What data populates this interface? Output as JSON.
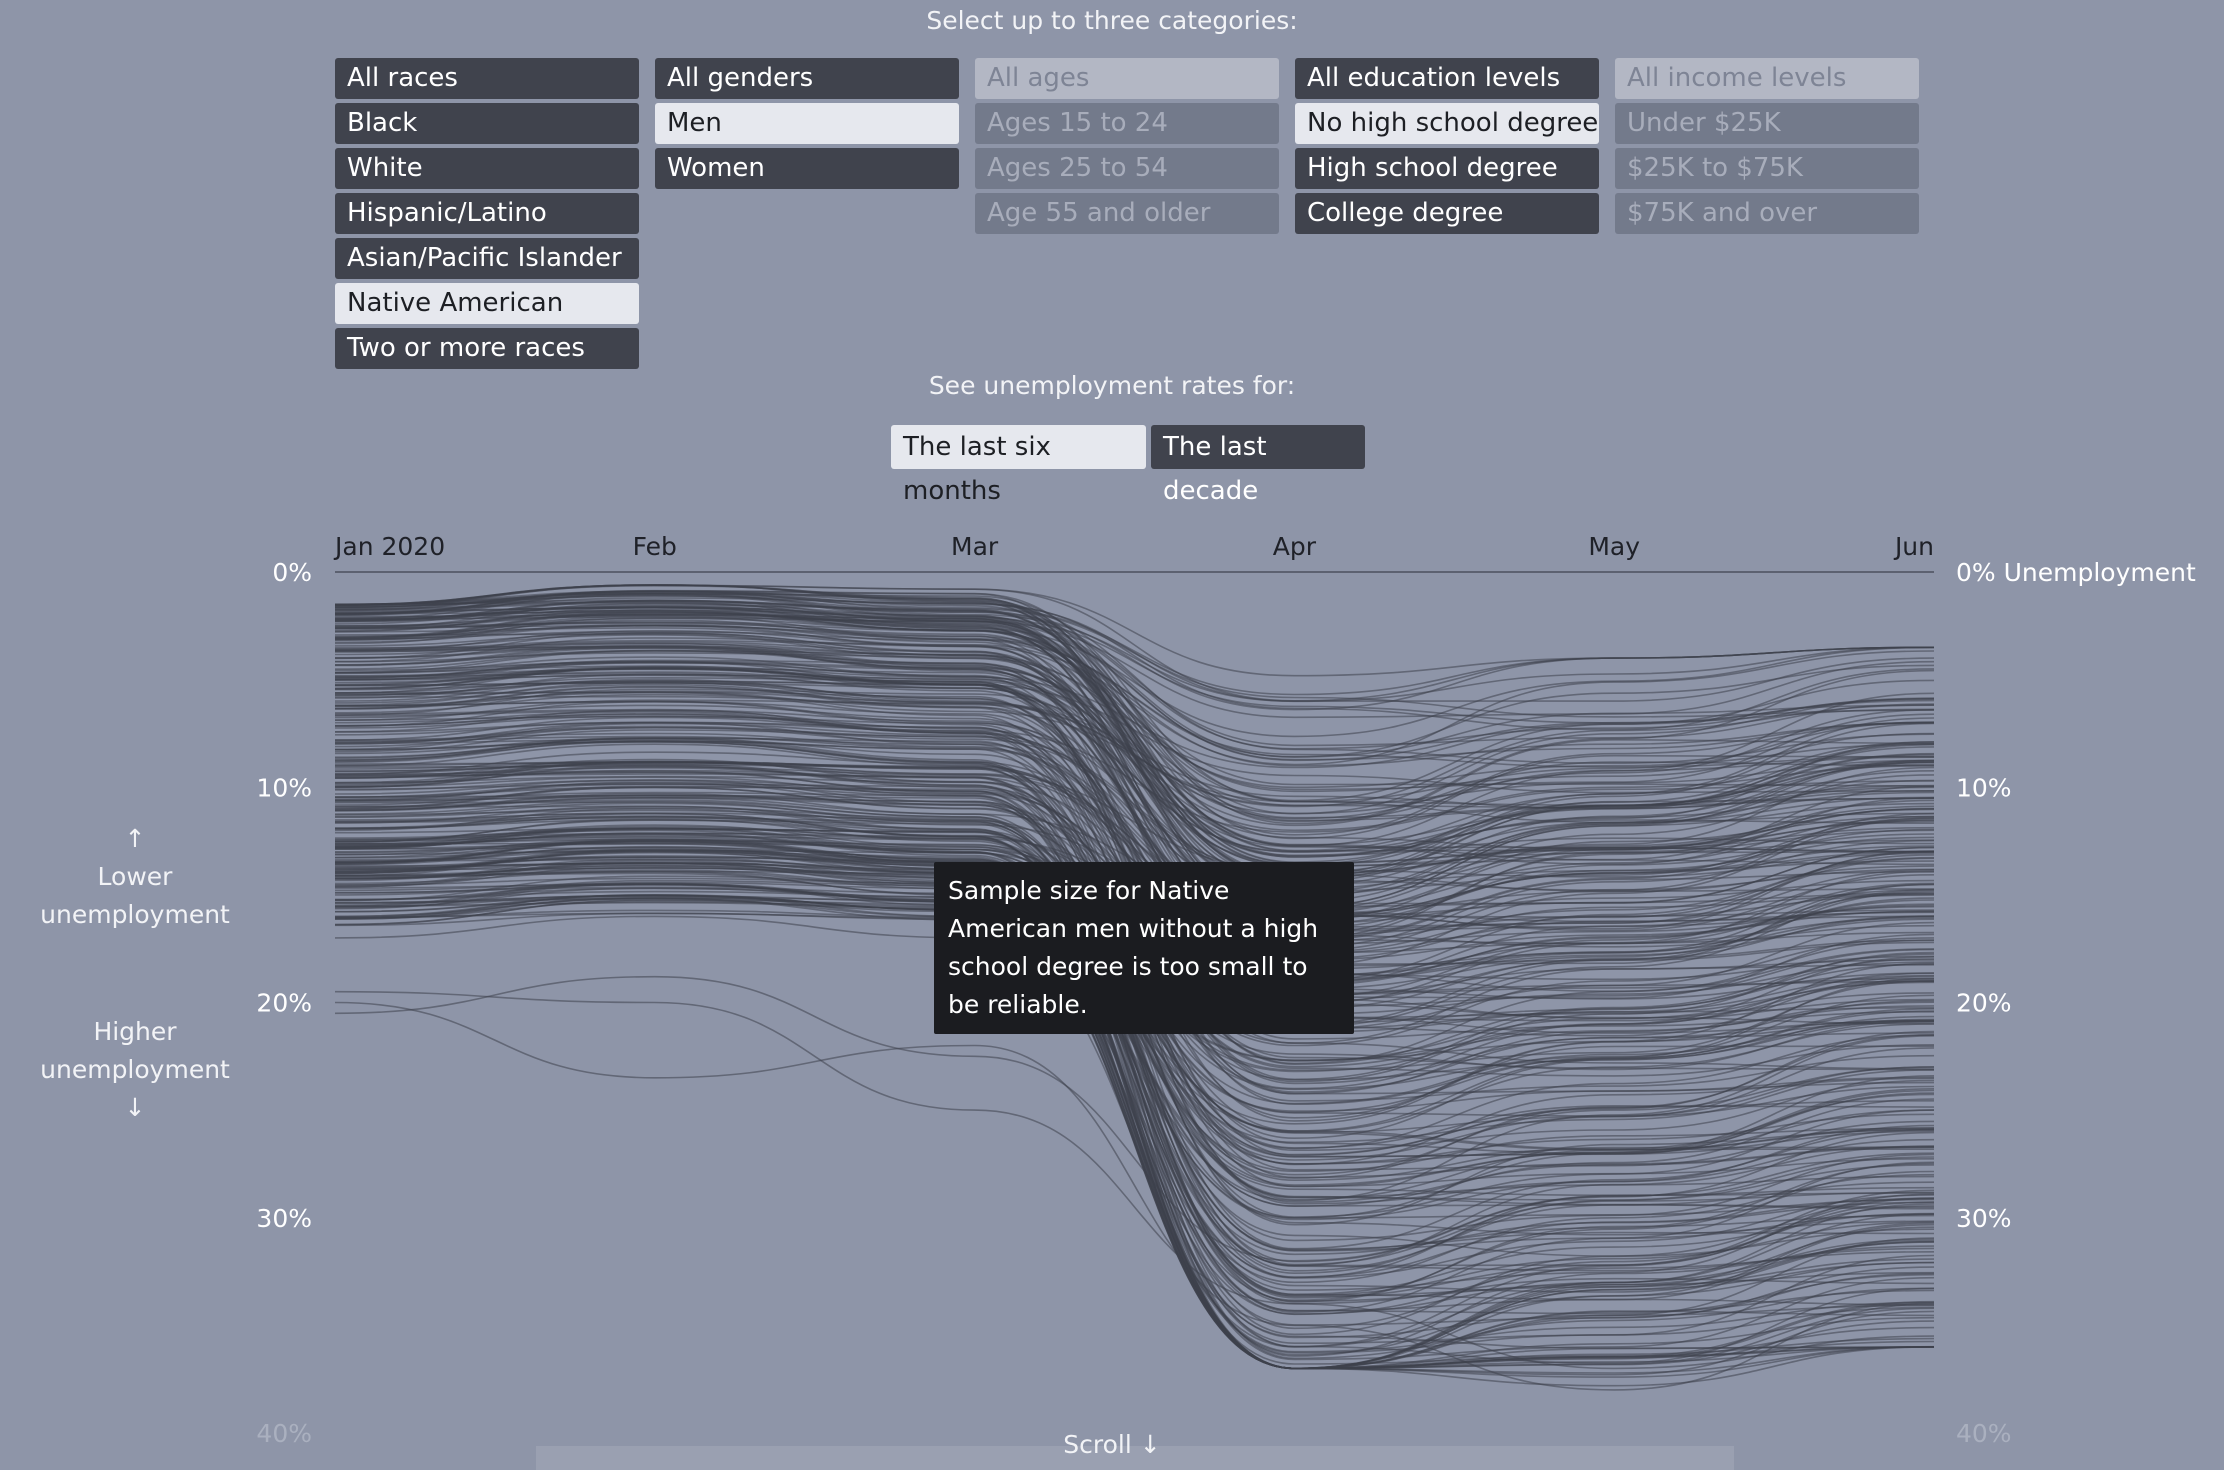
{
  "header": {
    "select_prompt": "Select up to three categories:",
    "range_prompt": "See unemployment rates for:"
  },
  "filters": {
    "races": [
      {
        "label": "All races",
        "state": "dark"
      },
      {
        "label": "Black",
        "state": "dark"
      },
      {
        "label": "White",
        "state": "dark"
      },
      {
        "label": "Hispanic/Latino",
        "state": "dark"
      },
      {
        "label": "Asian/Pacific Islander",
        "state": "dark"
      },
      {
        "label": "Native American",
        "state": "selected"
      },
      {
        "label": "Two or more races",
        "state": "dark"
      }
    ],
    "genders": [
      {
        "label": "All genders",
        "state": "dark"
      },
      {
        "label": "Men",
        "state": "selected"
      },
      {
        "label": "Women",
        "state": "dark"
      }
    ],
    "ages": [
      {
        "label": "All ages",
        "state": "disabled-head"
      },
      {
        "label": "Ages 15 to 24",
        "state": "disabled"
      },
      {
        "label": "Ages 25 to 54",
        "state": "disabled"
      },
      {
        "label": "Age 55 and older",
        "state": "disabled"
      }
    ],
    "education": [
      {
        "label": "All education levels",
        "state": "dark"
      },
      {
        "label": "No high school degree",
        "state": "selected"
      },
      {
        "label": "High school degree",
        "state": "dark"
      },
      {
        "label": "College degree",
        "state": "dark"
      }
    ],
    "income": [
      {
        "label": "All income levels",
        "state": "disabled-head"
      },
      {
        "label": "Under $25K",
        "state": "disabled"
      },
      {
        "label": "$25K to $75K",
        "state": "disabled"
      },
      {
        "label": "$75K and over",
        "state": "disabled"
      }
    ]
  },
  "time_range": {
    "options": [
      {
        "label": "The last six months",
        "state": "selected"
      },
      {
        "label": "The last decade",
        "state": "dark"
      }
    ]
  },
  "side_labels": {
    "lower_arrow": "↑",
    "lower_line1": "Lower",
    "lower_line2": "unemployment",
    "higher_line1": "Higher",
    "higher_line2": "unemployment",
    "higher_arrow": "↓"
  },
  "tooltip": {
    "text": "Sample size for Native American men without a high school degree is too small to be reliable."
  },
  "footer": {
    "scroll": "Scroll ↓"
  },
  "colors": {
    "background": "#8e95a8",
    "line": "#3e414d",
    "selected_button": "#e6e8ee",
    "dark_button": "#40434d"
  },
  "chart_data": {
    "type": "line",
    "x": [
      "Jan 2020",
      "Feb",
      "Mar",
      "Apr",
      "May",
      "Jun"
    ],
    "right_axis_label": "0% Unemployment",
    "y_ticks": [
      "0%",
      "10%",
      "20%",
      "30%",
      "40%"
    ],
    "ylim": [
      0,
      40
    ],
    "y_inverted": true,
    "grid": false,
    "series_count": 300,
    "series_values_approx": [
      [
        1.5,
        1.0,
        1.5,
        6.0,
        6.0,
        4.0
      ],
      [
        3.0,
        2.5,
        3.0,
        9.0,
        8.0,
        7.0
      ],
      [
        4.0,
        3.5,
        4.0,
        10.0,
        9.0,
        8.0
      ],
      [
        5.0,
        4.5,
        5.0,
        12.0,
        10.0,
        9.0
      ],
      [
        6.0,
        5.0,
        6.0,
        13.0,
        11.0,
        10.0
      ],
      [
        7.0,
        6.5,
        7.5,
        15.0,
        13.0,
        12.0
      ],
      [
        8.0,
        7.0,
        8.0,
        16.0,
        14.0,
        13.0
      ],
      [
        9.0,
        8.0,
        9.0,
        18.0,
        16.0,
        15.0
      ],
      [
        10.0,
        9.0,
        10.0,
        20.0,
        18.0,
        16.0
      ],
      [
        11.0,
        10.0,
        11.0,
        22.0,
        19.0,
        17.0
      ],
      [
        12.0,
        11.0,
        12.0,
        24.0,
        21.0,
        19.0
      ],
      [
        13.0,
        12.5,
        13.5,
        26.0,
        23.0,
        21.0
      ],
      [
        14.0,
        13.0,
        14.0,
        28.0,
        25.0,
        23.0
      ],
      [
        15.0,
        14.5,
        15.5,
        30.0,
        27.0,
        25.0
      ],
      [
        16.0,
        15.0,
        16.0,
        33.0,
        30.0,
        28.0
      ],
      [
        17.0,
        16.0,
        17.0,
        36.0,
        33.0,
        31.0
      ],
      [
        20.5,
        18.8,
        22.5,
        32.0,
        29.0,
        27.0
      ],
      [
        20.0,
        23.5,
        22.0,
        35.0,
        38.0,
        34.0
      ],
      [
        19.5,
        20.0,
        25.0,
        34.0,
        37.0,
        35.5
      ]
    ]
  }
}
